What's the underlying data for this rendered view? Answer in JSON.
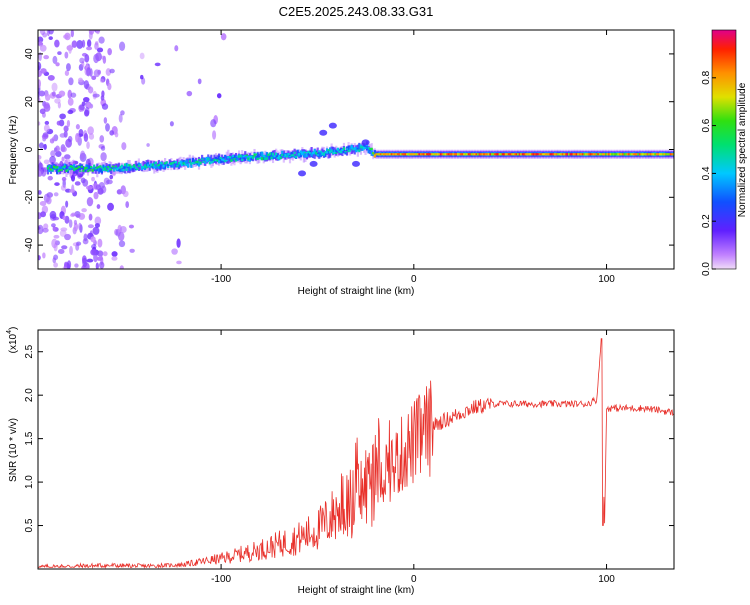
{
  "title": "C2E5.2025.243.08.33.G31",
  "colors": {
    "snr_line": "#e8302a",
    "axis": "#000000",
    "colorbar": [
      "#e8c8f0",
      "#b070e0",
      "#8020ff",
      "#2020ff",
      "#00c0ff",
      "#00e080",
      "#20e020",
      "#c8e000",
      "#ffb000",
      "#ff3000",
      "#e0008a"
    ]
  },
  "chart_data": [
    {
      "type": "heatmap",
      "title": "C2E5.2025.243.08.33.G31",
      "xlabel": "Height of straight line (km)",
      "ylabel": "Frequency (Hz)",
      "xlim": [
        -195,
        135
      ],
      "ylim": [
        -50,
        50
      ],
      "x_ticks": [
        "-100",
        "0",
        "100"
      ],
      "y_ticks": [
        "-40",
        "-20",
        "0",
        "20",
        "40"
      ],
      "colorbar": {
        "label": "Normalized spectral amplitude",
        "range": [
          0,
          1
        ],
        "ticks": [
          "0.0",
          "0.2",
          "0.4",
          "0.6",
          "0.8"
        ]
      },
      "ridge": {
        "x": [
          -185,
          -160,
          -140,
          -120,
          -100,
          -80,
          -60,
          -40,
          -25,
          -20,
          0,
          40,
          80,
          100,
          135
        ],
        "frequency_hz": [
          -8,
          -8,
          -7,
          -6,
          -4,
          -3,
          -2,
          -1,
          1,
          -2,
          -2,
          -2,
          -2,
          -2,
          -2
        ],
        "peak_amplitude": [
          0.6,
          0.55,
          0.5,
          0.5,
          0.5,
          0.55,
          0.45,
          0.5,
          0.45,
          0.85,
          0.9,
          0.9,
          0.9,
          0.85,
          0.85
        ]
      },
      "grid": false
    },
    {
      "type": "line",
      "xlabel": "Height of straight line (km)",
      "ylabel": "SNR (10 * v/v)",
      "y_multiplier": "(x10",
      "y_multiplier_exp": "4",
      "xlim": [
        -195,
        135
      ],
      "ylim": [
        0,
        27500
      ],
      "x_ticks": [
        "-100",
        "0",
        "100"
      ],
      "y_ticks": [
        "0.5",
        "1.0",
        "1.5",
        "2.0",
        "2.5"
      ],
      "series": [
        {
          "x": [
            -195,
            -160,
            -140,
            -120,
            -100,
            -80,
            -60,
            -50,
            -40,
            -30,
            -25,
            -20,
            -15,
            -10,
            -5,
            0,
            5,
            10,
            20,
            30,
            40,
            50,
            60,
            70,
            80,
            90,
            95,
            97,
            99,
            100,
            105,
            110,
            120,
            135
          ],
          "y": [
            200,
            400,
            300,
            500,
            1200,
            2200,
            3500,
            4500,
            6500,
            8000,
            9500,
            10500,
            11500,
            12000,
            13500,
            14500,
            15500,
            16500,
            17500,
            18500,
            19000,
            19000,
            19000,
            19000,
            19000,
            19000,
            19500,
            26000,
            5000,
            18500,
            18500,
            18500,
            18500,
            18000
          ]
        }
      ],
      "grid": false
    }
  ]
}
